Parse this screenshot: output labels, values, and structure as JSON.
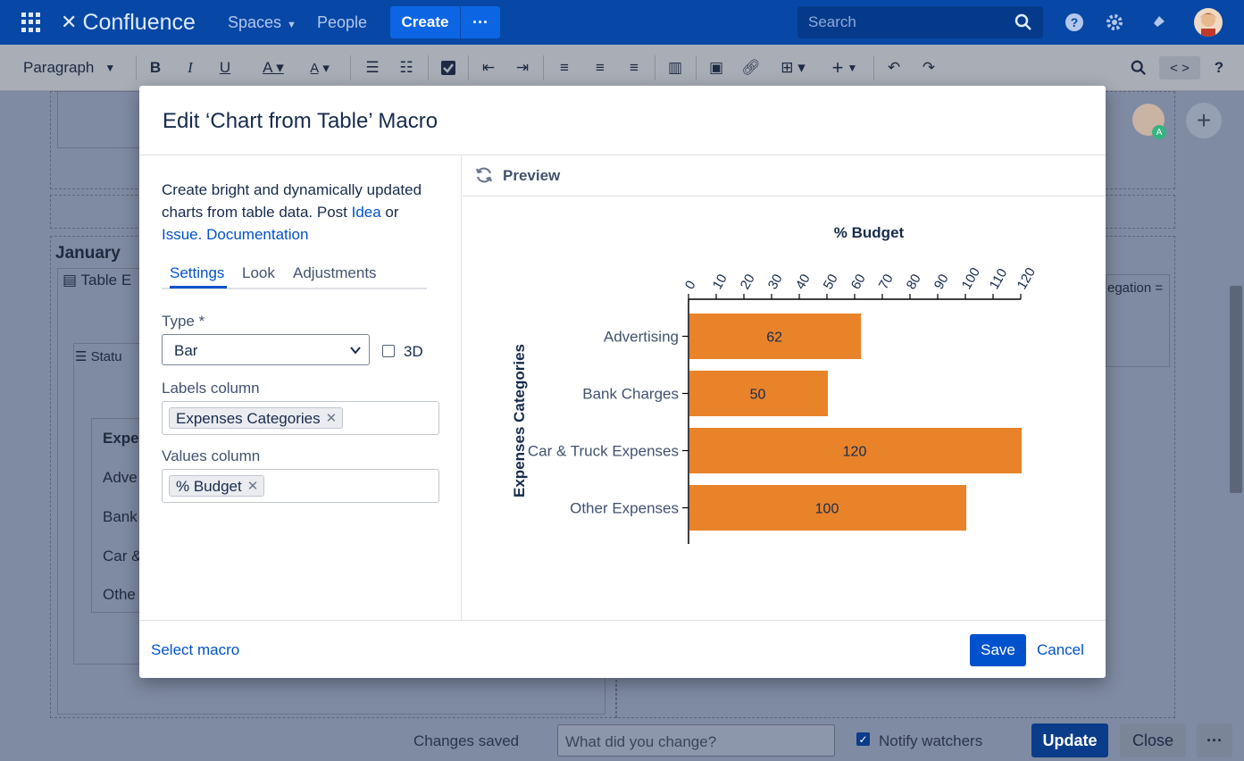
{
  "nav": {
    "app_name": "Confluence",
    "spaces": "Spaces",
    "people": "People",
    "create": "Create",
    "more": "···",
    "search_placeholder": "Search"
  },
  "toolbar": {
    "paragraph": "Paragraph",
    "source": "< >",
    "help": "?"
  },
  "background": {
    "section_heading": "January",
    "table_excerpt": "Table E",
    "status": "Statu",
    "table_header": "Expe",
    "rows": [
      "Adve",
      "Bank",
      "Car &",
      "Othe"
    ],
    "aggregation": "egation ="
  },
  "modal": {
    "title": "Edit ‘Chart from Table’ Macro",
    "description_text": "Create bright and dynamically updated charts from table data. Post ",
    "idea_link": "Idea",
    "or_text": " or",
    "issue_link": "Issue.",
    "documentation_link": "Documentation",
    "tabs": [
      "Settings",
      "Look",
      "Adjustments"
    ],
    "type_label": "Type *",
    "type_value": "Bar",
    "three_d_label": "3D",
    "labels_column_label": "Labels column",
    "labels_column_tag": "Expenses Categories",
    "values_column_label": "Values column",
    "values_column_tag": "% Budget",
    "preview_label": "Preview",
    "select_macro": "Select macro",
    "save": "Save",
    "cancel": "Cancel"
  },
  "bottom": {
    "status": "Changes saved",
    "change_placeholder": "What did you change?",
    "notify": "Notify watchers",
    "update": "Update",
    "close": "Close",
    "more": "···"
  },
  "chart_data": {
    "type": "bar",
    "orientation": "horizontal",
    "title": "% Budget",
    "xlabel": "% Budget",
    "ylabel": "Expenses Categories",
    "categories": [
      "Advertising",
      "Bank Charges",
      "Car & Truck Expenses",
      "Other Expenses"
    ],
    "values": [
      62,
      50,
      120,
      100
    ],
    "xlim": [
      0,
      120
    ],
    "ticks": [
      0,
      10,
      20,
      30,
      40,
      50,
      60,
      70,
      80,
      90,
      100,
      110,
      120
    ],
    "bar_color": "#e8832a",
    "x_axis_position": "top",
    "grid": false,
    "legend": "none"
  },
  "colors": {
    "nav_bg": "#0747a6",
    "primary": "#0052cc",
    "overlay": "#7f8ba3",
    "bar": "#e8832a"
  }
}
